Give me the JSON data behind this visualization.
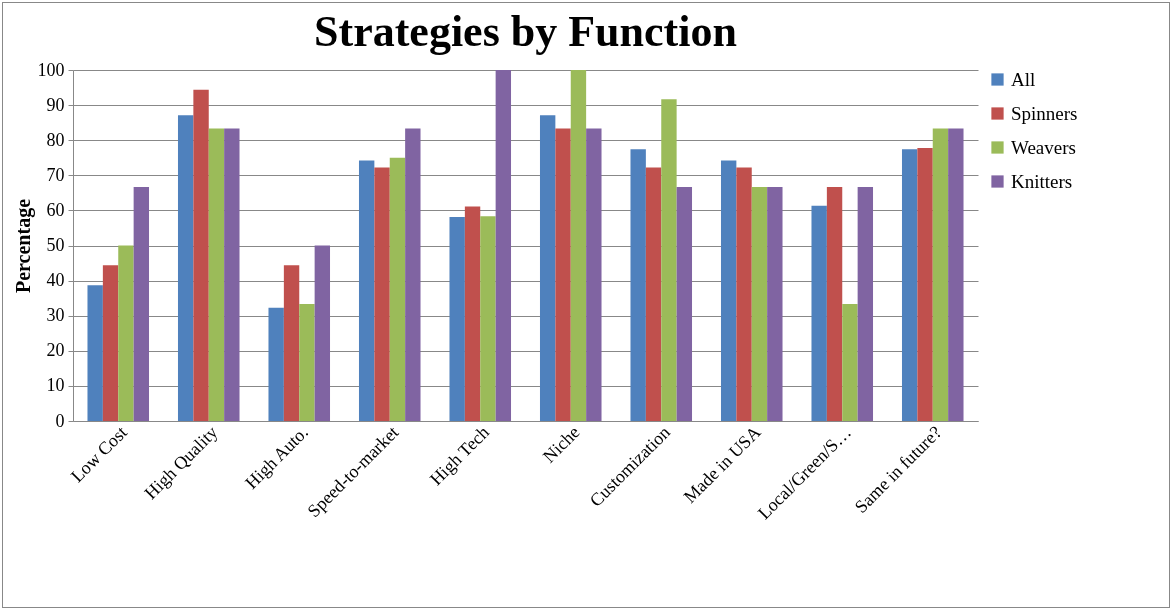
{
  "chart_data": {
    "type": "bar",
    "title": "Strategies by Function",
    "ylabel": "Percentage",
    "categories": [
      "Low Cost",
      "High Quality",
      "High Auto.",
      "Speed-to-market",
      "High Tech",
      "Niche",
      "Customization",
      "Made in USA",
      "Local/Green/S…",
      "Same in future?"
    ],
    "series": [
      {
        "name": "All",
        "color": "#4f81bd",
        "values": [
          38.7,
          87.1,
          32.3,
          74.2,
          58.1,
          87.1,
          77.4,
          74.2,
          61.3,
          77.4
        ]
      },
      {
        "name": "Spinners",
        "color": "#c0504d",
        "values": [
          44.4,
          94.4,
          44.4,
          72.2,
          61.1,
          83.3,
          72.2,
          72.2,
          66.7,
          77.8
        ]
      },
      {
        "name": "Weavers",
        "color": "#9bbb59",
        "values": [
          50,
          83.3,
          33.3,
          75,
          58.3,
          100,
          91.7,
          66.7,
          33.3,
          83.3
        ]
      },
      {
        "name": "Knitters",
        "color": "#8064a2",
        "values": [
          66.7,
          83.3,
          50,
          83.3,
          100,
          83.3,
          66.7,
          66.7,
          66.7,
          83.3
        ]
      }
    ],
    "ylim": [
      0,
      100
    ],
    "yticks": [
      0,
      10,
      20,
      30,
      40,
      50,
      60,
      70,
      80,
      90,
      100
    ],
    "grid": "y",
    "legend": "right"
  }
}
